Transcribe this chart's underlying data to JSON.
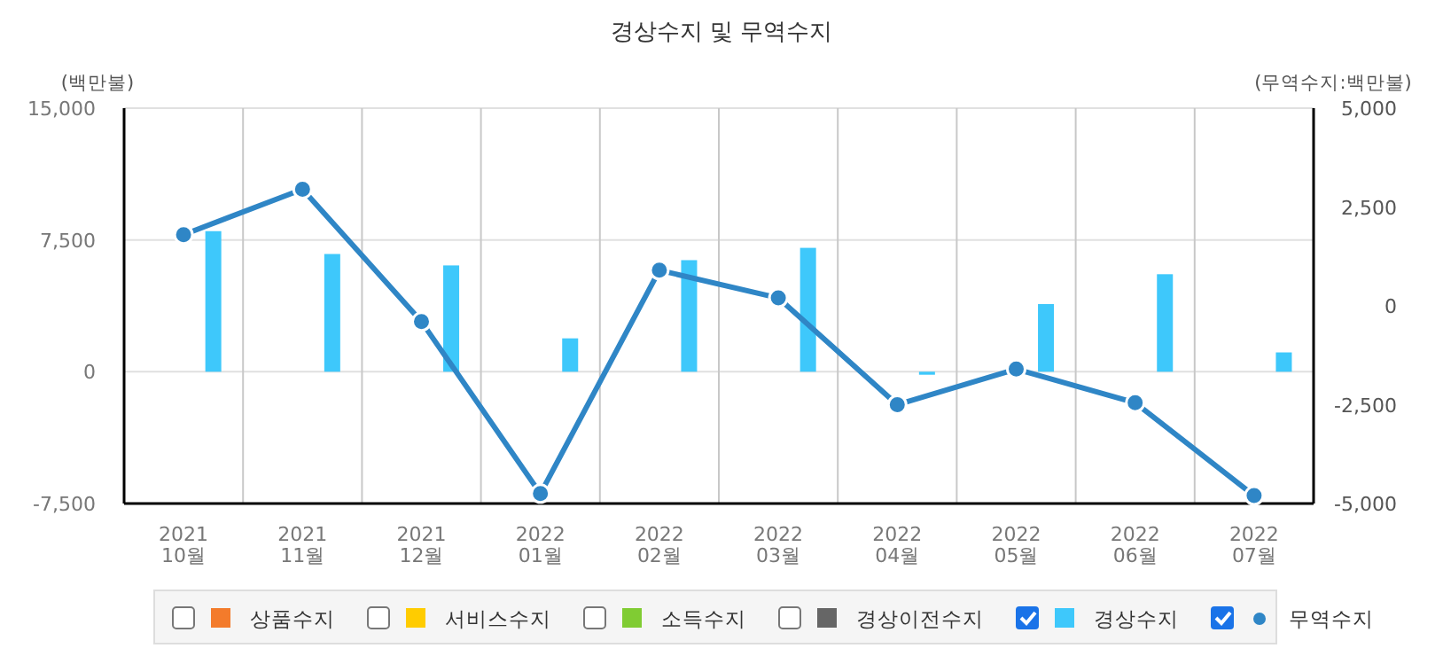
{
  "chart_data": {
    "type": "bar",
    "title": "경상수지 및 무역수지",
    "ylabel": "(백만불)",
    "y2label": "(무역수지:백만불)",
    "categories": [
      "2021 10월",
      "2021 11월",
      "2021 12월",
      "2022 01월",
      "2022 02월",
      "2022 03월",
      "2022 04월",
      "2022 05월",
      "2022 06월",
      "2022 07월"
    ],
    "series": [
      {
        "name": "상품수지",
        "color": "#f37b2b",
        "values": [
          null,
          null,
          null,
          null,
          null,
          null,
          null,
          null,
          null,
          null
        ]
      },
      {
        "name": "서비스수지",
        "color": "#ffcc00",
        "values": [
          null,
          null,
          null,
          null,
          null,
          null,
          null,
          null,
          null,
          null
        ]
      },
      {
        "name": "소득수지",
        "color": "#80cc33",
        "values": [
          null,
          null,
          null,
          null,
          null,
          null,
          null,
          null,
          null,
          null
        ]
      },
      {
        "name": "경상이전수지",
        "color": "#666666",
        "values": [
          null,
          null,
          null,
          null,
          null,
          null,
          null,
          null,
          null,
          null
        ]
      },
      {
        "name": "경상수지",
        "color": "#3ec8fb",
        "values": [
          8000,
          6700,
          6050,
          1900,
          6350,
          7050,
          -170,
          3850,
          5550,
          1100
        ]
      },
      {
        "name": "무역수지",
        "type": "line",
        "axis": "y2",
        "color": "#2f86c6",
        "values": [
          1800,
          2950,
          -400,
          -4750,
          900,
          200,
          -2500,
          -1600,
          -2450,
          -4800
        ]
      }
    ],
    "ylim": [
      -7500,
      15000
    ],
    "yticks": [
      {
        "value": -7500,
        "label": "-7,500"
      },
      0,
      {
        "value": 7500,
        "label": "7,500"
      },
      {
        "value": 15000,
        "label": "15,000"
      }
    ],
    "y2lim": [
      -5000,
      5000
    ],
    "y2ticks": [
      {
        "value": -5000,
        "label": "-5,000"
      },
      {
        "value": -2500,
        "label": "-2,500"
      },
      0,
      {
        "value": 2500,
        "label": "2,500"
      },
      {
        "value": 5000,
        "label": "5,000"
      }
    ],
    "grid": true,
    "legend": "bottom",
    "marker": "circle",
    "line_style": "solid"
  }
}
